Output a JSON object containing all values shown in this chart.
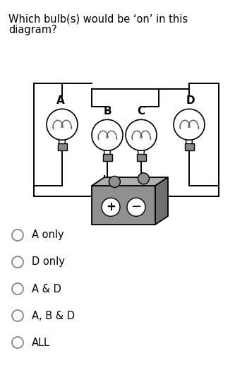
{
  "title_line1": "Which bulb(s) would be ‘on’ in this",
  "title_line2": "diagram?",
  "title_fontsize": 10.5,
  "options": [
    "A only",
    "D only",
    "A & D",
    "A, B & D",
    "ALL"
  ],
  "bulb_labels": [
    "A",
    "B",
    "C",
    "D"
  ],
  "bg_color": "#ffffff",
  "text_color": "#000000",
  "wire_color": "#000000",
  "socket_color": "#888888",
  "battery_front_color": "#909090",
  "battery_top_color": "#b0b0b0",
  "battery_right_color": "#707070"
}
